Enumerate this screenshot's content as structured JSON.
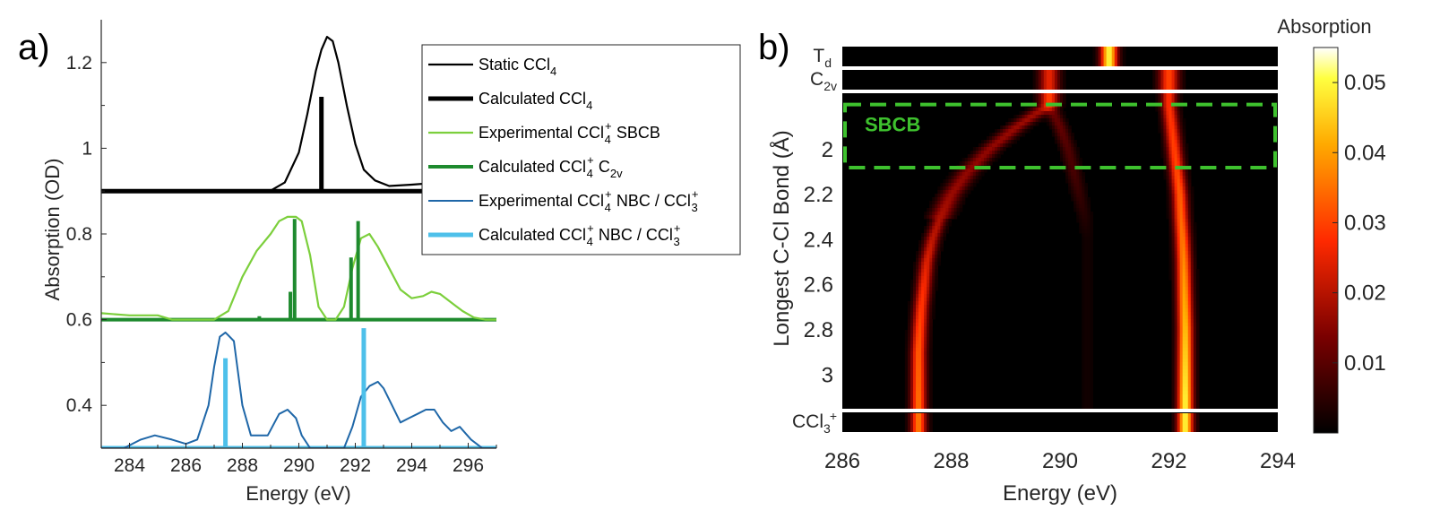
{
  "chart_data": [
    {
      "panel": "a)",
      "type": "line",
      "xlabel": "Energy (eV)",
      "ylabel": "Absorption (OD)",
      "xlim": [
        283,
        297
      ],
      "ylim": [
        0.3,
        1.3
      ],
      "xticks": [
        "284",
        "286",
        "288",
        "290",
        "292",
        "294",
        "296"
      ],
      "yticks": [
        "0.4",
        "0.6",
        "0.8",
        "1",
        "1.2"
      ],
      "legend_position": "top-right",
      "legend": [
        {
          "text": "Static CCl",
          "sub": "4",
          "sup": ""
        },
        {
          "text": "Calculated CCl",
          "sub": "4",
          "sup": ""
        },
        {
          "text": "Experimental CCl",
          "sub": "4",
          "sup": "+",
          "tail": " SBCB",
          "tail_sub": ""
        },
        {
          "text": "Calculated CCl",
          "sub": "4",
          "sup": "+",
          "tail": " C",
          "tail_sub": "2v"
        },
        {
          "text": "Experimental CCl",
          "sub": "4",
          "sup": "+",
          "tail": " NBC / CCl",
          "tail_sub": "3",
          "tail_sup": "+"
        },
        {
          "text": "Calculated CCl",
          "sub": "4",
          "sup": "+",
          "tail": " NBC / CCl",
          "tail_sub": "3",
          "tail_sup": "+"
        }
      ],
      "series": [
        {
          "name": "Static CCl4",
          "color": "#000000",
          "width": 2.2,
          "style": "line",
          "x": [
            283,
            286,
            288,
            289,
            289.5,
            290,
            290.3,
            290.6,
            290.8,
            291,
            291.2,
            291.4,
            291.7,
            292,
            292.3,
            292.7,
            293.2,
            294,
            295,
            296,
            297
          ],
          "y": [
            0.9,
            0.9,
            0.9,
            0.901,
            0.92,
            0.99,
            1.08,
            1.18,
            1.23,
            1.26,
            1.25,
            1.2,
            1.1,
            1.01,
            0.95,
            0.925,
            0.912,
            0.915,
            0.92,
            0.92,
            0.925
          ]
        },
        {
          "name": "Calculated CCl4",
          "color": "#000000",
          "width": 5,
          "style": "stick",
          "base": 0.9,
          "x": [
            290.8
          ],
          "y": [
            1.12
          ]
        },
        {
          "name": "Experimental CCl4+ SBCB",
          "color": "#7ccf3c",
          "width": 2.2,
          "style": "line",
          "x": [
            283,
            284,
            285,
            285.5,
            286,
            287,
            287.5,
            288,
            288.5,
            289,
            289.3,
            289.6,
            289.9,
            290.1,
            290.4,
            290.7,
            291,
            291.3,
            291.6,
            291.9,
            292.2,
            292.5,
            292.8,
            293.2,
            293.6,
            294,
            294.4,
            294.7,
            295,
            295.4,
            295.8,
            296.2,
            296.6,
            297
          ],
          "y": [
            0.615,
            0.61,
            0.61,
            0.6,
            0.6,
            0.6,
            0.62,
            0.7,
            0.76,
            0.8,
            0.83,
            0.84,
            0.84,
            0.83,
            0.75,
            0.63,
            0.6,
            0.6,
            0.63,
            0.72,
            0.79,
            0.8,
            0.77,
            0.72,
            0.67,
            0.65,
            0.655,
            0.665,
            0.66,
            0.64,
            0.62,
            0.605,
            0.6,
            0.6
          ]
        },
        {
          "name": "Calculated CCl4+ C2v",
          "color": "#1e8a2e",
          "width": 4,
          "style": "stick",
          "base": 0.6,
          "x": [
            288.6,
            289.7,
            289.85,
            291.85,
            292.1
          ],
          "y": [
            0.608,
            0.665,
            0.835,
            0.745,
            0.83
          ]
        },
        {
          "name": "Experimental CCl4+ NBC / CCl3+",
          "color": "#1f67a8",
          "width": 2,
          "style": "line",
          "x": [
            283,
            283.8,
            284.4,
            284.9,
            285.5,
            286,
            286.4,
            286.8,
            287,
            287.2,
            287.4,
            287.7,
            288,
            288.3,
            288.6,
            288.9,
            289.3,
            289.6,
            289.9,
            290.1,
            290.4,
            290.7,
            291,
            291.3,
            291.6,
            291.9,
            292.2,
            292.5,
            292.8,
            293,
            293.3,
            293.6,
            293.9,
            294.2,
            294.5,
            294.8,
            295.1,
            295.4,
            295.7,
            296.1,
            296.5,
            297
          ],
          "y": [
            0.3,
            0.3,
            0.32,
            0.33,
            0.32,
            0.31,
            0.32,
            0.4,
            0.49,
            0.56,
            0.57,
            0.55,
            0.4,
            0.33,
            0.33,
            0.33,
            0.38,
            0.39,
            0.37,
            0.33,
            0.3,
            0.3,
            0.3,
            0.3,
            0.3,
            0.35,
            0.42,
            0.445,
            0.455,
            0.44,
            0.4,
            0.36,
            0.37,
            0.38,
            0.39,
            0.39,
            0.36,
            0.34,
            0.35,
            0.32,
            0.3,
            0.3
          ]
        },
        {
          "name": "Calculated CCl4+ NBC / CCl3+",
          "color": "#4ec0ea",
          "width": 5,
          "style": "stick",
          "base": 0.3,
          "x": [
            287.4,
            292.3
          ],
          "y": [
            0.51,
            0.58
          ]
        }
      ]
    },
    {
      "panel": "b)",
      "type": "heatmap",
      "xlabel": "Energy (eV)",
      "ylabel": "Longest C-Cl Bond (Å)",
      "xlim": [
        286,
        294
      ],
      "ylim": [
        1.75,
        3.15
      ],
      "xticks": [
        "286",
        "288",
        "290",
        "292",
        "294"
      ],
      "yticks": [
        "2",
        "2.2",
        "2.4",
        "2.6",
        "2.8",
        "3"
      ],
      "colorbar": {
        "label": "Absorption",
        "min": 0,
        "max": 0.055,
        "ticks": [
          "0.01",
          "0.02",
          "0.03",
          "0.04",
          "0.05"
        ]
      },
      "strip_labels": [
        {
          "text": "T",
          "sub": "d"
        },
        {
          "text": "C",
          "sub": "2v"
        },
        {
          "text": "CCl",
          "sub": "3",
          "sup": "+"
        }
      ],
      "annotation": {
        "text": "SBCB",
        "color": "#3ec12e",
        "y_range": [
          1.8,
          2.08
        ]
      },
      "strips": {
        "Td": [
          {
            "e": 290.9,
            "a": 0.05,
            "w": 0.15
          }
        ],
        "C2v": [
          {
            "e": 289.8,
            "a": 0.025,
            "w": 0.18
          },
          {
            "e": 292.0,
            "a": 0.03,
            "w": 0.18
          }
        ],
        "CCl3+": [
          {
            "e": 287.4,
            "a": 0.036,
            "w": 0.14
          },
          {
            "e": 292.3,
            "a": 0.05,
            "w": 0.14
          }
        ]
      },
      "bands": [
        {
          "name": "low-energy band",
          "r": [
            1.8,
            1.9,
            2.0,
            2.1,
            2.2,
            2.3,
            2.4,
            2.5,
            2.6,
            2.7,
            2.8,
            2.9,
            3.0,
            3.1
          ],
          "e": [
            289.8,
            289.2,
            288.7,
            288.3,
            288.0,
            287.8,
            287.65,
            287.55,
            287.5,
            287.45,
            287.42,
            287.4,
            287.4,
            287.4
          ],
          "a": [
            0.018,
            0.017,
            0.016,
            0.016,
            0.017,
            0.019,
            0.021,
            0.024,
            0.027,
            0.029,
            0.031,
            0.033,
            0.034,
            0.035
          ]
        },
        {
          "name": "weak branch",
          "r": [
            1.8,
            1.9,
            2.0,
            2.1,
            2.2,
            2.3,
            2.4
          ],
          "e": [
            289.8,
            290.0,
            290.15,
            290.25,
            290.35,
            290.45,
            290.5
          ],
          "a": [
            0.012,
            0.011,
            0.009,
            0.008,
            0.006,
            0.004,
            0.002
          ]
        },
        {
          "name": "high-energy band",
          "r": [
            1.8,
            1.9,
            2.0,
            2.1,
            2.2,
            2.3,
            2.4,
            2.5,
            2.6,
            2.7,
            2.8,
            2.9,
            3.0,
            3.1
          ],
          "e": [
            292.0,
            292.05,
            292.1,
            292.15,
            292.2,
            292.22,
            292.25,
            292.27,
            292.28,
            292.29,
            292.3,
            292.3,
            292.3,
            292.3
          ],
          "a": [
            0.028,
            0.029,
            0.03,
            0.031,
            0.033,
            0.034,
            0.036,
            0.038,
            0.04,
            0.042,
            0.044,
            0.046,
            0.048,
            0.05
          ]
        }
      ]
    }
  ]
}
